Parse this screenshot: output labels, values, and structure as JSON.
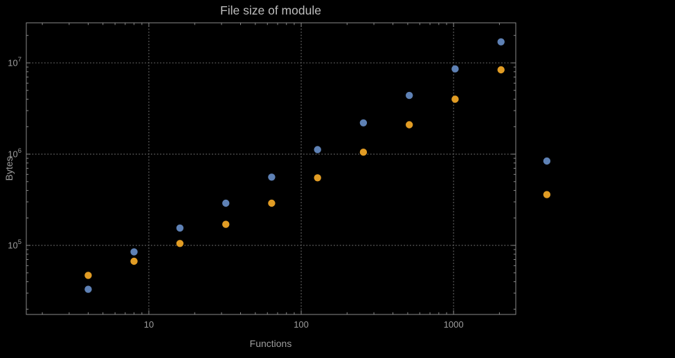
{
  "page": {
    "background_color": "#000000"
  },
  "style": {
    "frame_color": "#8a8a8a",
    "grid_color": "#6f6f6f",
    "label_color": "#9e9e9e",
    "title_color": "#bdbdbd",
    "series_colors": [
      "#5e81b5",
      "#e19c24"
    ]
  },
  "chart_data": {
    "type": "scatter",
    "title": "File size of module",
    "xlabel": "Functions",
    "ylabel": "Bytes",
    "x_scale": "log",
    "y_scale": "log",
    "grid": true,
    "framed": true,
    "legend": "none",
    "x_range": [
      1.57,
      2560
    ],
    "y_range": [
      17500,
      27500000
    ],
    "x_ticks": [
      10,
      100,
      1000
    ],
    "x_tick_labels": [
      "10",
      "100",
      "1000"
    ],
    "y_ticks": [
      100000,
      1000000,
      10000000
    ],
    "y_tick_labels": [
      {
        "mantissa": "10",
        "exponent": "5"
      },
      {
        "mantissa": "10",
        "exponent": "6"
      },
      {
        "mantissa": "10",
        "exponent": "7"
      }
    ],
    "series": [
      {
        "name": "series-1-blue",
        "color": "#5e81b5",
        "x": [
          4,
          8,
          16,
          32,
          64,
          128,
          256,
          512,
          1024,
          2048,
          4096
        ],
        "y": [
          33000,
          85000,
          155000,
          290000,
          560000,
          1120000,
          2200000,
          4400000,
          8600000,
          17000000,
          840000
        ]
      },
      {
        "name": "series-2-orange",
        "color": "#e19c24",
        "x": [
          4,
          8,
          16,
          32,
          64,
          128,
          256,
          512,
          1024,
          2048,
          4096
        ],
        "y": [
          47000,
          67000,
          105000,
          170000,
          290000,
          550000,
          1050000,
          2100000,
          4000000,
          8400000,
          360000
        ]
      }
    ]
  }
}
